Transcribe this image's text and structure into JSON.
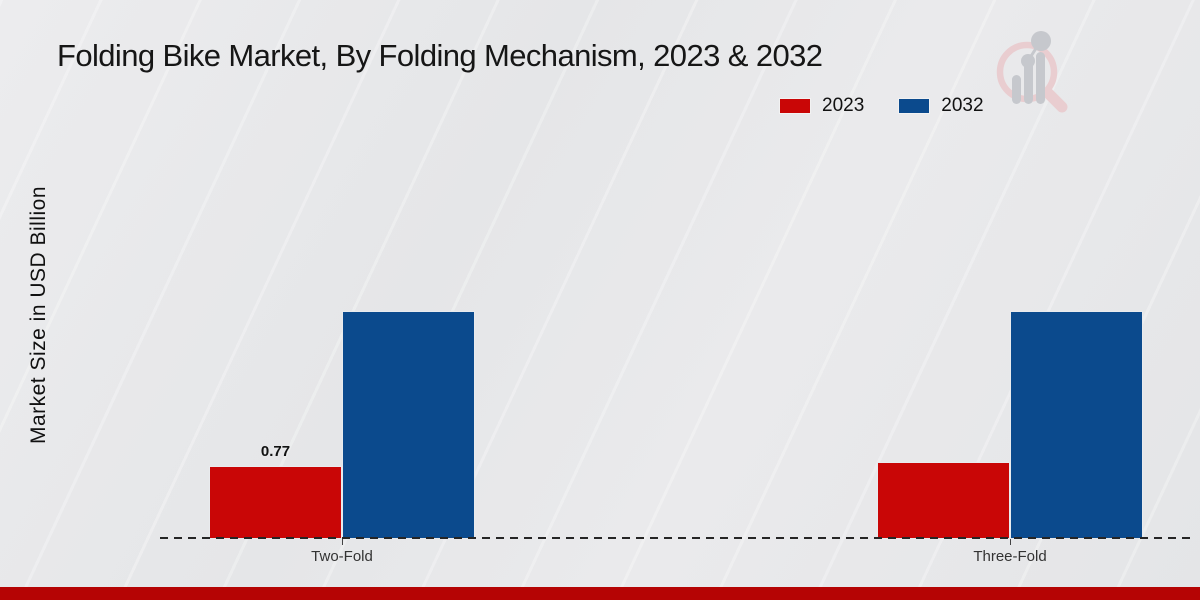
{
  "chart_data": {
    "type": "bar",
    "title": "Folding Bike Market, By Folding Mechanism, 2023 & 2032",
    "ylabel": "Market Size in USD Billion",
    "xlabel": "",
    "categories": [
      "Two-Fold",
      "Three-Fold"
    ],
    "series": [
      {
        "name": "2023",
        "color": "#c90606",
        "values": [
          0.77,
          0.81
        ],
        "value_labels": [
          "0.77",
          ""
        ]
      },
      {
        "name": "2032",
        "color": "#0b4a8d",
        "values": [
          2.43,
          2.43
        ],
        "value_labels": [
          "",
          ""
        ]
      }
    ],
    "ylim": [
      0,
      3
    ],
    "grid": false,
    "legend_position": "top-right",
    "x_axis_style": "dashed-baseline",
    "bar_orientation": "vertical"
  },
  "icons": {
    "logo": "market-research-magnifier-chart-logo"
  },
  "colors": {
    "background": "#e7e8e9",
    "footer_accent_bar": "#b50404",
    "axis_line": "#252525",
    "category_label": "#333333",
    "logo_ring": "#e9cdd0",
    "logo_bars": "#c6c8cd"
  }
}
